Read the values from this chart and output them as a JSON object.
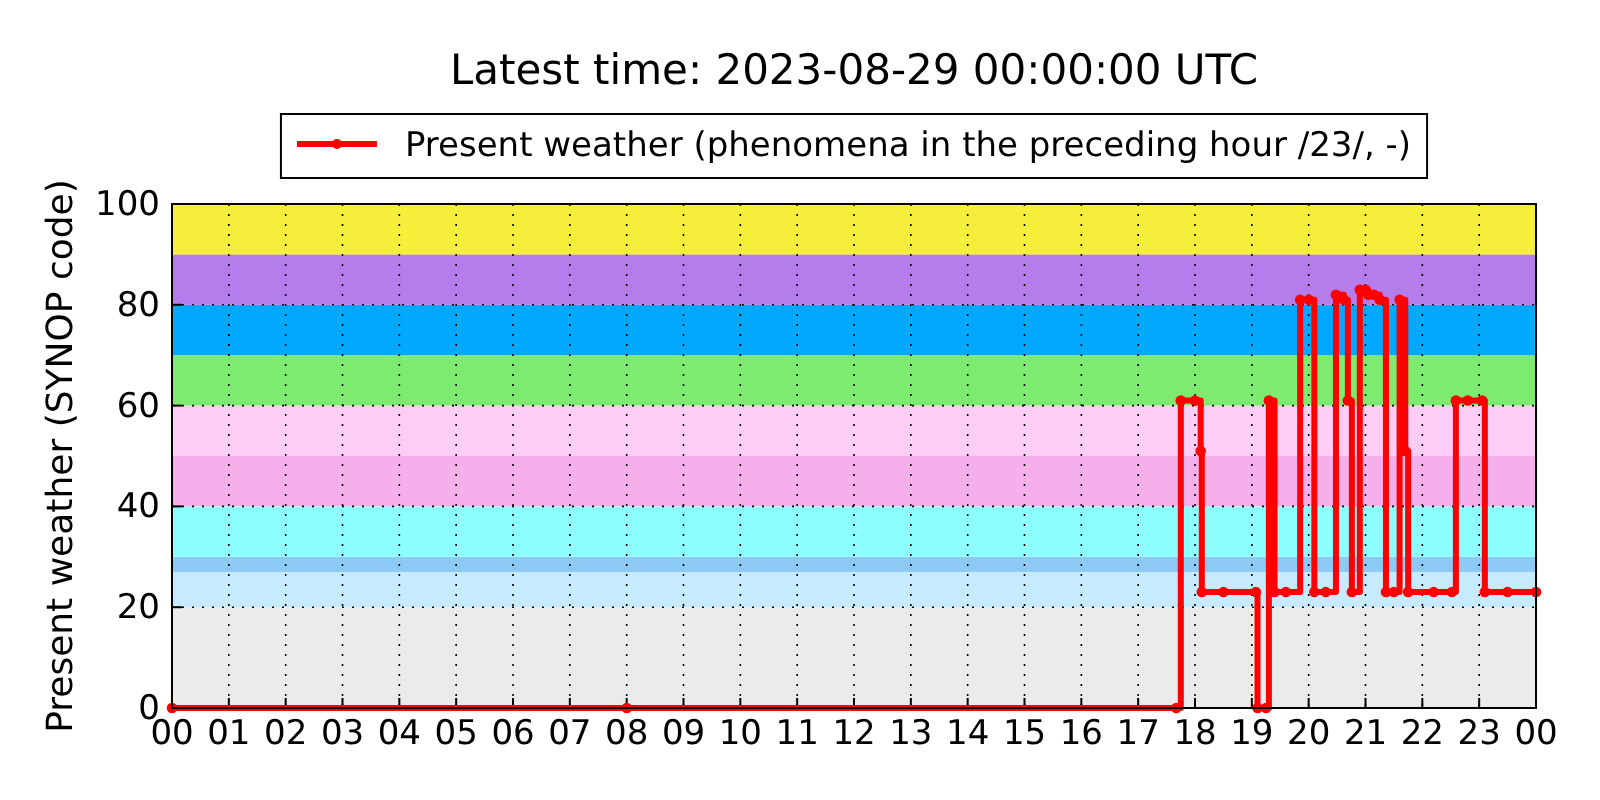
{
  "chart_data": {
    "type": "step",
    "title": "Latest time: 2023-08-29 00:00:00 UTC",
    "ylabel": "Present weather (SYNOP code)",
    "x": [
      0,
      8,
      17.67,
      17.75,
      18.0,
      18.1,
      18.12,
      18.5,
      19.07,
      19.1,
      19.25,
      19.3,
      19.4,
      19.6,
      19.85,
      20.0,
      20.1,
      20.3,
      20.48,
      20.62,
      20.69,
      20.76,
      20.9,
      21.0,
      21.05,
      21.15,
      21.25,
      21.36,
      21.5,
      21.6,
      21.7,
      21.75,
      22.2,
      22.52,
      22.59,
      22.8,
      23.05,
      23.1,
      23.5,
      24
    ],
    "series": [
      {
        "name": "Present weather (phenomena in the preceding hour /23/, -)",
        "color": "#ff0000",
        "values": [
          0,
          0,
          0,
          61,
          61,
          51,
          23,
          23,
          23,
          0,
          0,
          61,
          23,
          23,
          81,
          81,
          23,
          23,
          82,
          81,
          61,
          23,
          83,
          83,
          82,
          82,
          81,
          23,
          23,
          81,
          51,
          23,
          23,
          23,
          61,
          61,
          61,
          23,
          23,
          23
        ]
      }
    ],
    "xlim": [
      0,
      24
    ],
    "ylim": [
      0,
      100
    ],
    "xticks": [
      {
        "value": 0,
        "label": "00"
      },
      {
        "value": 1,
        "label": "01"
      },
      {
        "value": 2,
        "label": "02"
      },
      {
        "value": 3,
        "label": "03"
      },
      {
        "value": 4,
        "label": "04"
      },
      {
        "value": 5,
        "label": "05"
      },
      {
        "value": 6,
        "label": "06"
      },
      {
        "value": 7,
        "label": "07"
      },
      {
        "value": 8,
        "label": "08"
      },
      {
        "value": 9,
        "label": "09"
      },
      {
        "value": 10,
        "label": "10"
      },
      {
        "value": 11,
        "label": "11"
      },
      {
        "value": 12,
        "label": "12"
      },
      {
        "value": 13,
        "label": "13"
      },
      {
        "value": 14,
        "label": "14"
      },
      {
        "value": 15,
        "label": "15"
      },
      {
        "value": 16,
        "label": "16"
      },
      {
        "value": 17,
        "label": "17"
      },
      {
        "value": 18,
        "label": "18"
      },
      {
        "value": 19,
        "label": "19"
      },
      {
        "value": 20,
        "label": "20"
      },
      {
        "value": 21,
        "label": "21"
      },
      {
        "value": 22,
        "label": "22"
      },
      {
        "value": 23,
        "label": "23"
      },
      {
        "value": 24,
        "label": "00"
      }
    ],
    "yticks": [
      0,
      20,
      40,
      60,
      80,
      100
    ],
    "bands": [
      {
        "axis": "y",
        "from": 0,
        "to": 20,
        "color": "#ebebeb"
      },
      {
        "axis": "y",
        "from": 20,
        "to": 27,
        "color": "#c6eafe"
      },
      {
        "axis": "y",
        "from": 27,
        "to": 30,
        "color": "#8ccaf5"
      },
      {
        "axis": "y",
        "from": 30,
        "to": 40,
        "color": "#8effff"
      },
      {
        "axis": "y",
        "from": 40,
        "to": 50,
        "color": "#f5b0ec"
      },
      {
        "axis": "y",
        "from": 50,
        "to": 60,
        "color": "#fdcdf5"
      },
      {
        "axis": "y",
        "from": 60,
        "to": 70,
        "color": "#7ceb70"
      },
      {
        "axis": "y",
        "from": 70,
        "to": 80,
        "color": "#00a8ff"
      },
      {
        "axis": "y",
        "from": 80,
        "to": 90,
        "color": "#b57ceb"
      },
      {
        "axis": "y",
        "from": 90,
        "to": 100,
        "color": "#f5ef3b"
      }
    ],
    "grid": true,
    "legend": "top",
    "marker": "circle",
    "line_style": "solid"
  }
}
